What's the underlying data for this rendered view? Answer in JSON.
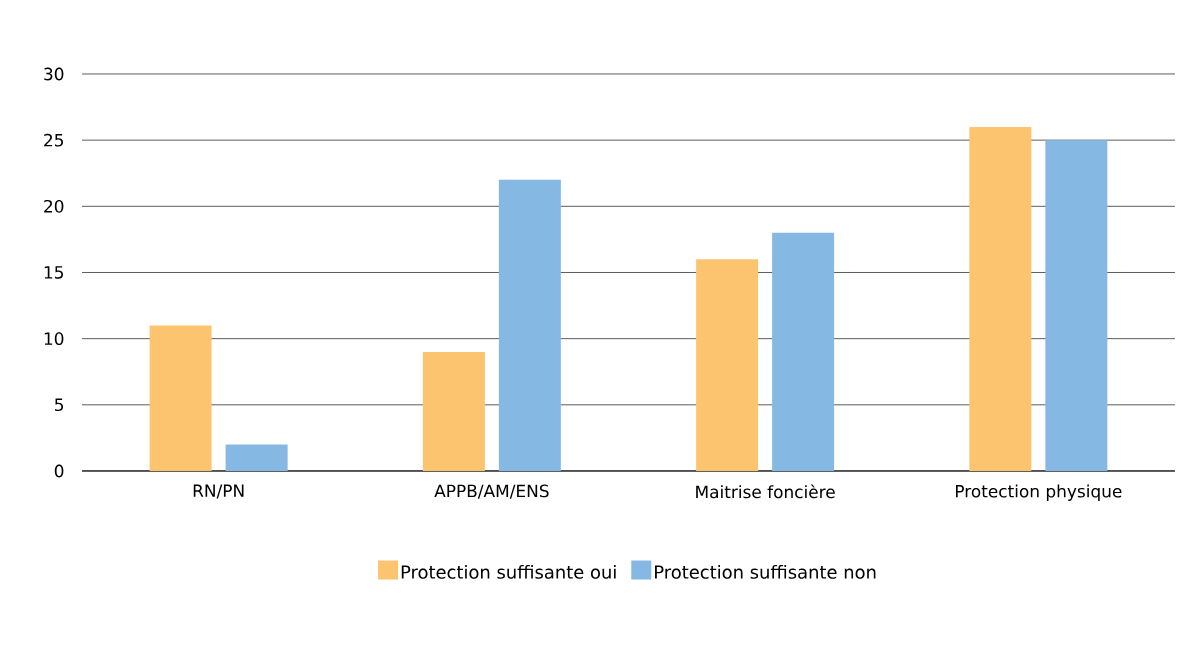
{
  "chart_data": {
    "type": "bar",
    "categories": [
      "RN/PN",
      "APPB/AM/ENS",
      "Maitrise foncière",
      "Protection physique"
    ],
    "series": [
      {
        "name": "Protection suffisante oui",
        "color": "#fdc470",
        "values": [
          11,
          9,
          16,
          26
        ]
      },
      {
        "name": "Protection suffisante non",
        "color": "#85b9e3",
        "values": [
          2,
          22,
          18,
          25
        ]
      }
    ],
    "ylim": [
      0,
      30
    ],
    "yticks": [
      0,
      5,
      10,
      15,
      20,
      25,
      30
    ],
    "grid": "y",
    "legend": "bottom"
  }
}
